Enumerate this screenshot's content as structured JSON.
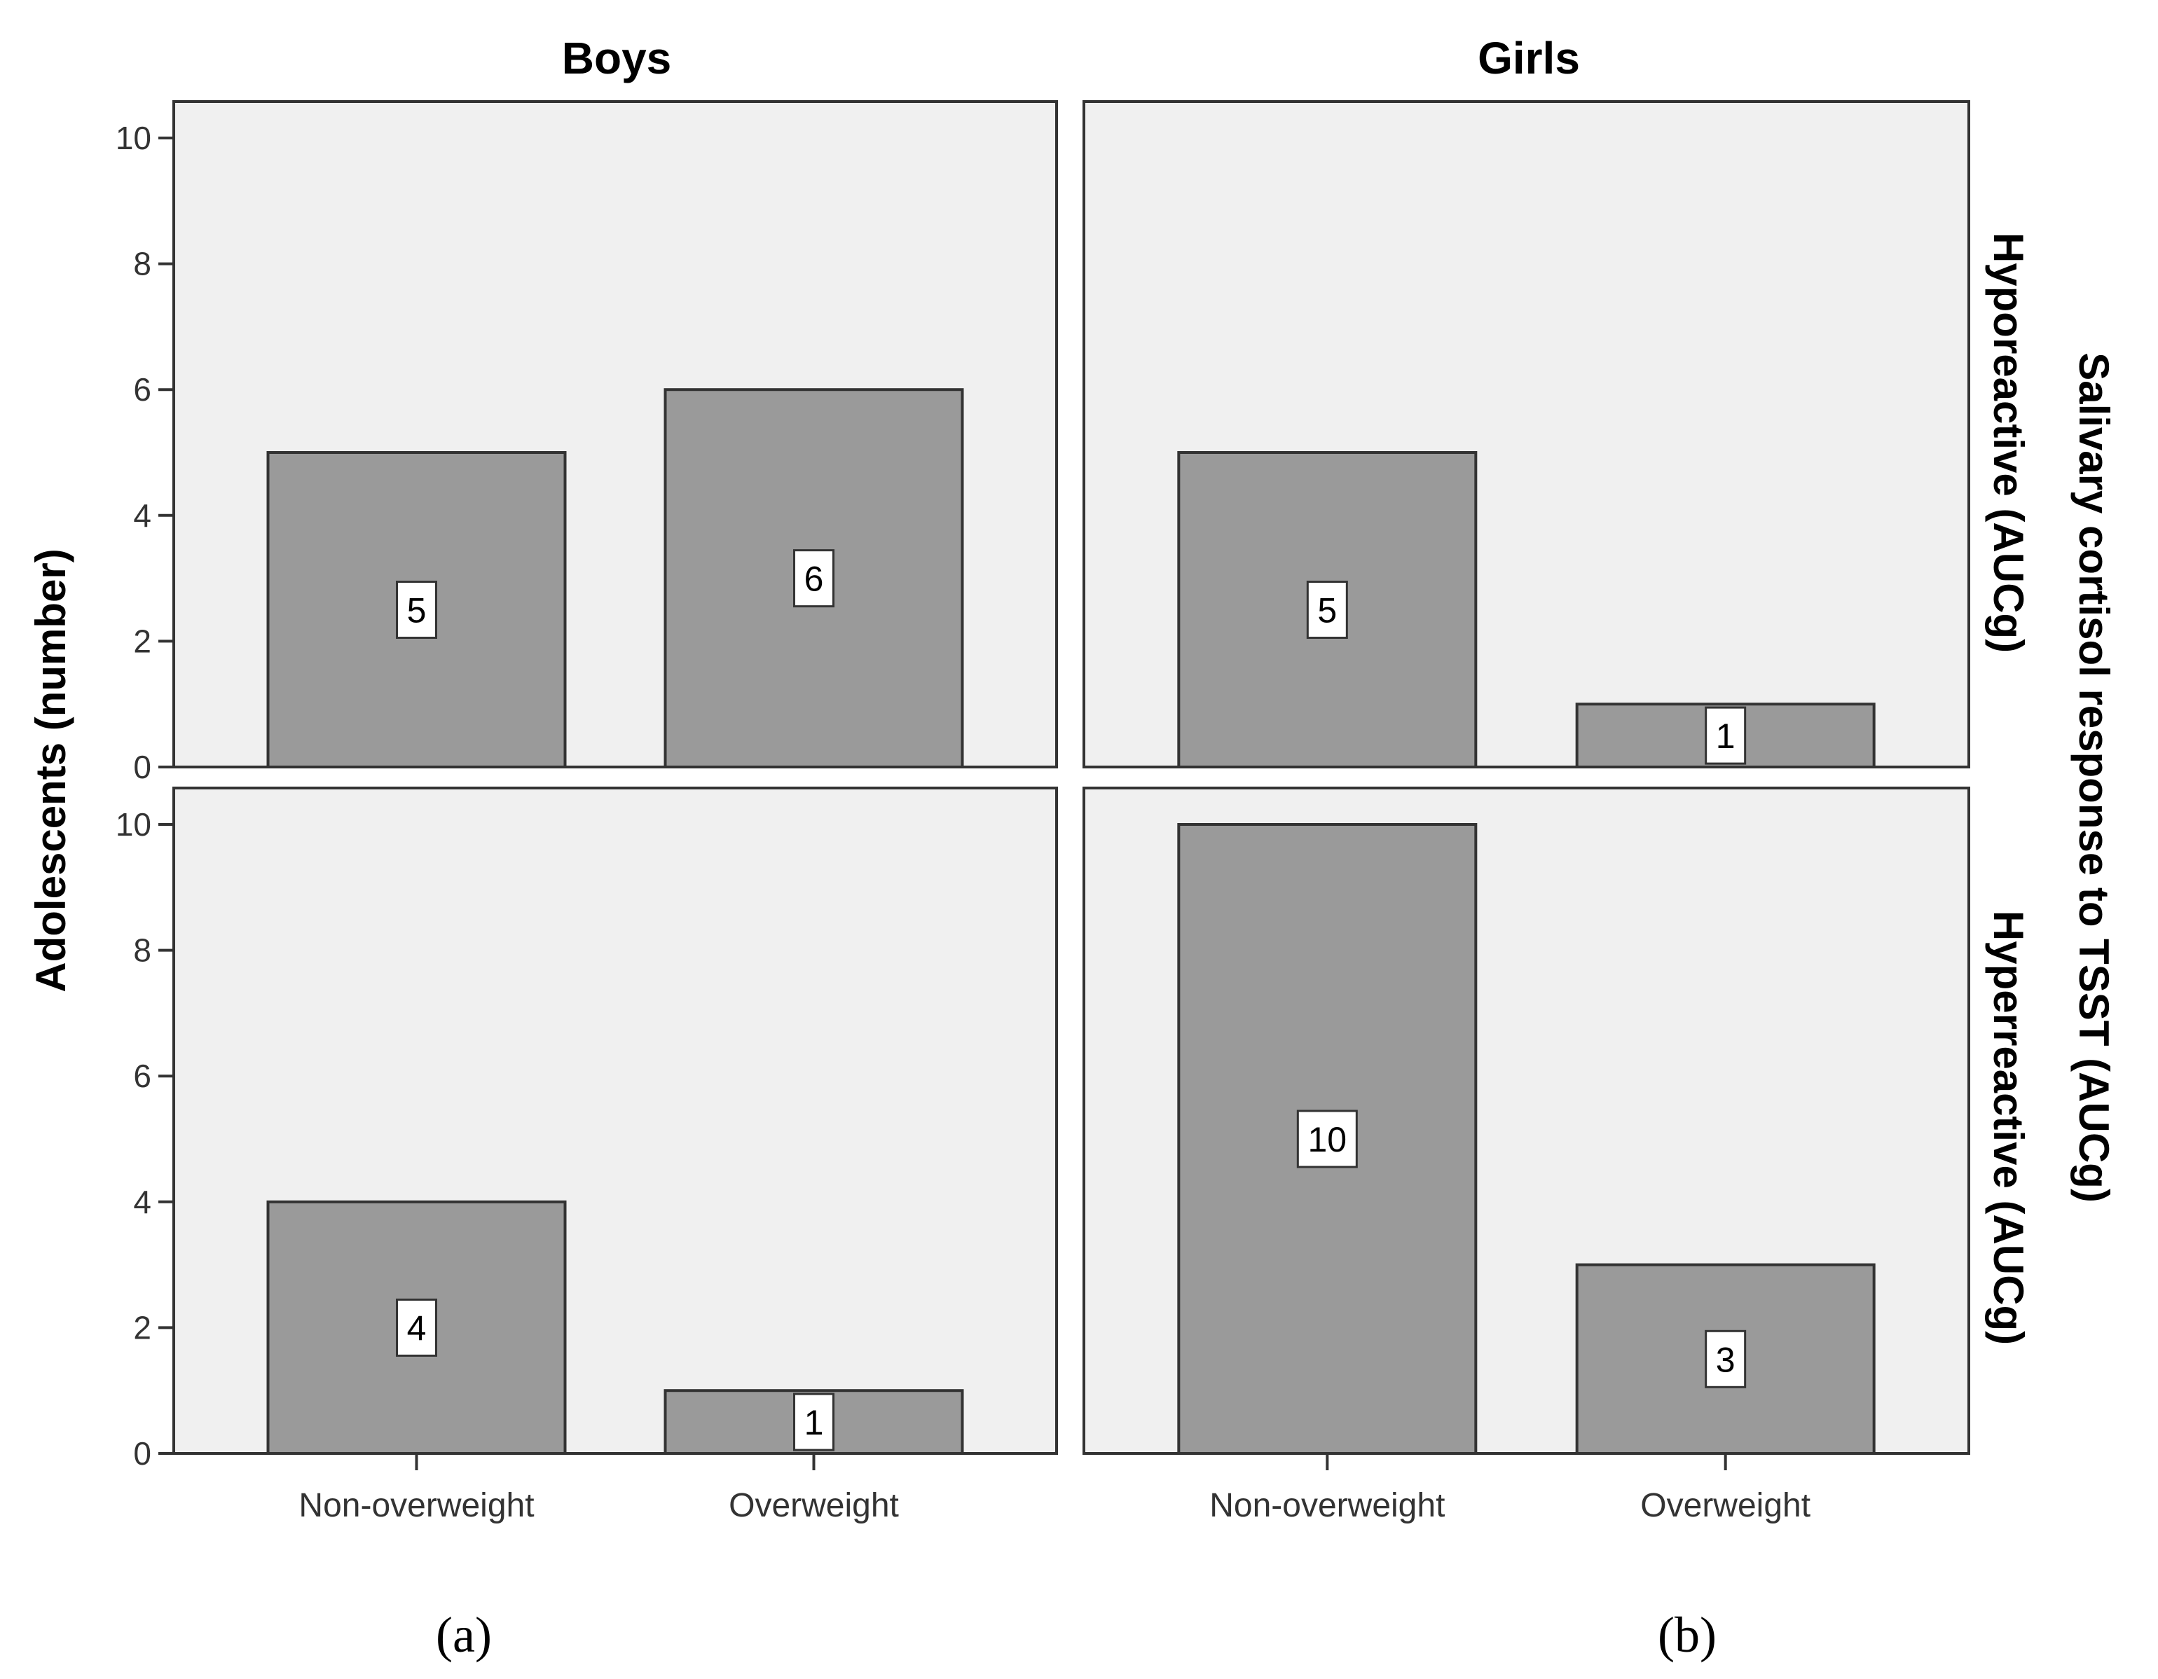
{
  "chart_data": {
    "type": "bar",
    "title": "",
    "ylabel": "Adolescents (number)",
    "right_label": "Salivary cortisol response to TSST (AUCg)",
    "ylim": [
      0,
      10
    ],
    "yticks": [
      0,
      2,
      4,
      6,
      8,
      10
    ],
    "columns": [
      "Boys",
      "Girls"
    ],
    "rows": [
      "Hyporeactive (AUCg)",
      "Hyperreactive (AUCg)"
    ],
    "categories": [
      "Non-overweight",
      "Overweight"
    ],
    "subfigure_labels": [
      "(a)",
      "(b)"
    ],
    "panels": [
      {
        "column": "Boys",
        "row": "Hyporeactive (AUCg)",
        "values": [
          5,
          6
        ]
      },
      {
        "column": "Girls",
        "row": "Hyporeactive (AUCg)",
        "values": [
          5,
          1
        ]
      },
      {
        "column": "Boys",
        "row": "Hyperreactive (AUCg)",
        "values": [
          4,
          1
        ]
      },
      {
        "column": "Girls",
        "row": "Hyperreactive (AUCg)",
        "values": [
          10,
          3
        ]
      }
    ],
    "colors": {
      "panel_bg": "#f0f0f0",
      "bar_fill": "#9a9a9a",
      "bar_stroke": "#333333",
      "frame": "#333333",
      "label_box": "#ffffff"
    }
  }
}
